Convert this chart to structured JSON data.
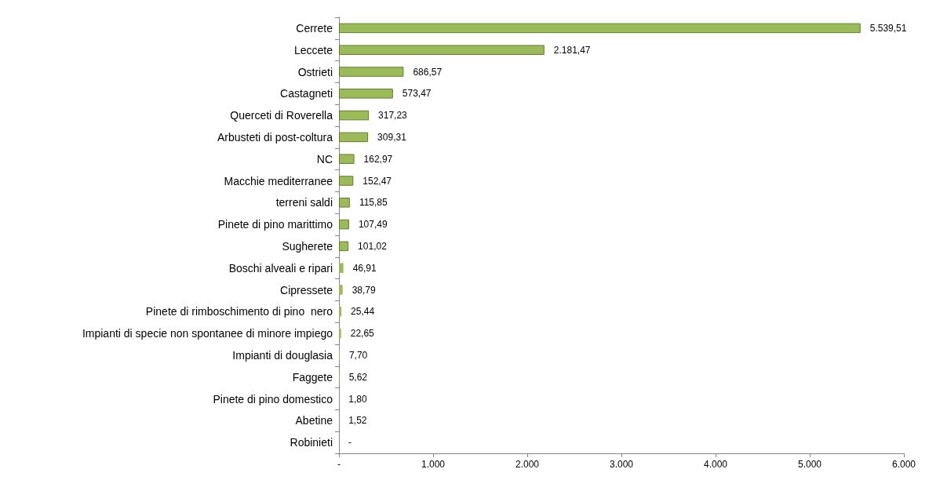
{
  "chart_data": {
    "type": "bar",
    "orientation": "horizontal",
    "categories": [
      "Cerrete",
      "Leccete",
      "Ostrieti",
      "Castagneti",
      "Querceti di Roverella",
      "Arbusteti di post-coltura",
      "NC",
      "Macchie mediterranee",
      "terreni saldi",
      "Pinete di pino marittimo",
      "Sugherete",
      "Boschi alveali e ripari",
      "Cipressete",
      "Pinete di rimboschimento di pino  nero",
      "Impianti di specie non spontanee di minore impiego",
      "Impianti di douglasia",
      "Faggete",
      "Pinete di pino domestico",
      "Abetine",
      "Robinieti"
    ],
    "values": [
      5539.51,
      2181.47,
      686.57,
      573.47,
      317.23,
      309.31,
      162.97,
      152.47,
      115.85,
      107.49,
      101.02,
      46.91,
      38.79,
      25.44,
      22.65,
      7.7,
      5.62,
      1.8,
      1.52,
      0
    ],
    "value_labels": [
      "5.539,51",
      "2.181,47",
      "686,57",
      "573,47",
      "317,23",
      "309,31",
      "162,97",
      "152,47",
      "115,85",
      "107,49",
      "101,02",
      "46,91",
      "38,79",
      "25,44",
      "22,65",
      "7,70",
      "5,62",
      "1,80",
      "1,52",
      "-"
    ],
    "color": "#9bbb59",
    "xlim": [
      0,
      6000
    ],
    "xticks": [
      {
        "value": 0,
        "label": "-"
      },
      {
        "value": 1000,
        "label": "1.000"
      },
      {
        "value": 2000,
        "label": "2.000"
      },
      {
        "value": 3000,
        "label": "3.000"
      },
      {
        "value": 4000,
        "label": "4.000"
      },
      {
        "value": 5000,
        "label": "5.000"
      },
      {
        "value": 6000,
        "label": "6.000"
      }
    ],
    "grid": false
  }
}
